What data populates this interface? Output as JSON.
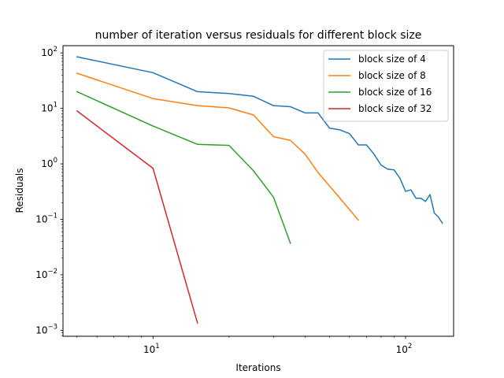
{
  "chart_data": {
    "type": "line",
    "title": "number of iteration versus residuals for different block size",
    "xlabel": "Iterations",
    "ylabel": "Residuals",
    "xscale": "log",
    "yscale": "log",
    "xlim": [
      4.4,
      155
    ],
    "ylim": [
      0.00078,
      135
    ],
    "grid": false,
    "legend_position": "top-right",
    "x_ticks": [
      {
        "value": 10,
        "base": "10",
        "exp": "1"
      },
      {
        "value": 100,
        "base": "10",
        "exp": "2"
      }
    ],
    "y_ticks": [
      {
        "value": 0.001,
        "base": "10",
        "exp": "−3"
      },
      {
        "value": 0.01,
        "base": "10",
        "exp": "−2"
      },
      {
        "value": 0.1,
        "base": "10",
        "exp": "−1"
      },
      {
        "value": 1,
        "base": "10",
        "exp": "0"
      },
      {
        "value": 10,
        "base": "10",
        "exp": "1"
      },
      {
        "value": 100,
        "base": "10",
        "exp": "2"
      }
    ],
    "series": [
      {
        "name": "block size of 4",
        "color": "#1f77b4",
        "points": [
          [
            5,
            85
          ],
          [
            10,
            44
          ],
          [
            15,
            20
          ],
          [
            20,
            18.5
          ],
          [
            25,
            16.5
          ],
          [
            30,
            11.2
          ],
          [
            35,
            10.7
          ],
          [
            40,
            8.3
          ],
          [
            45,
            8.3
          ],
          [
            50,
            4.4
          ],
          [
            55,
            4.1
          ],
          [
            60,
            3.5
          ],
          [
            65,
            2.2
          ],
          [
            70,
            2.2
          ],
          [
            75,
            1.5
          ],
          [
            80,
            0.95
          ],
          [
            85,
            0.8
          ],
          [
            90,
            0.78
          ],
          [
            95,
            0.55
          ],
          [
            100,
            0.32
          ],
          [
            105,
            0.34
          ],
          [
            110,
            0.24
          ],
          [
            115,
            0.24
          ],
          [
            120,
            0.21
          ],
          [
            125,
            0.28
          ],
          [
            130,
            0.13
          ],
          [
            135,
            0.11
          ],
          [
            140,
            0.085
          ]
        ]
      },
      {
        "name": "block size of 8",
        "color": "#ff7f0e",
        "points": [
          [
            5,
            43
          ],
          [
            10,
            15
          ],
          [
            15,
            11.2
          ],
          [
            20,
            10.2
          ],
          [
            25,
            7.6
          ],
          [
            30,
            3.1
          ],
          [
            35,
            2.65
          ],
          [
            40,
            1.5
          ],
          [
            45,
            0.7
          ],
          [
            50,
            0.4
          ],
          [
            55,
            0.24
          ],
          [
            60,
            0.15
          ],
          [
            65,
            0.097
          ]
        ]
      },
      {
        "name": "block size of 16",
        "color": "#2ca02c",
        "points": [
          [
            5,
            20
          ],
          [
            10,
            4.8
          ],
          [
            15,
            2.25
          ],
          [
            20,
            2.15
          ],
          [
            25,
            0.75
          ],
          [
            30,
            0.25
          ],
          [
            35,
            0.037
          ]
        ]
      },
      {
        "name": "block size of 32",
        "color": "#d62728",
        "points": [
          [
            5,
            9
          ],
          [
            10,
            0.83
          ],
          [
            15,
            0.00135
          ]
        ]
      }
    ]
  }
}
